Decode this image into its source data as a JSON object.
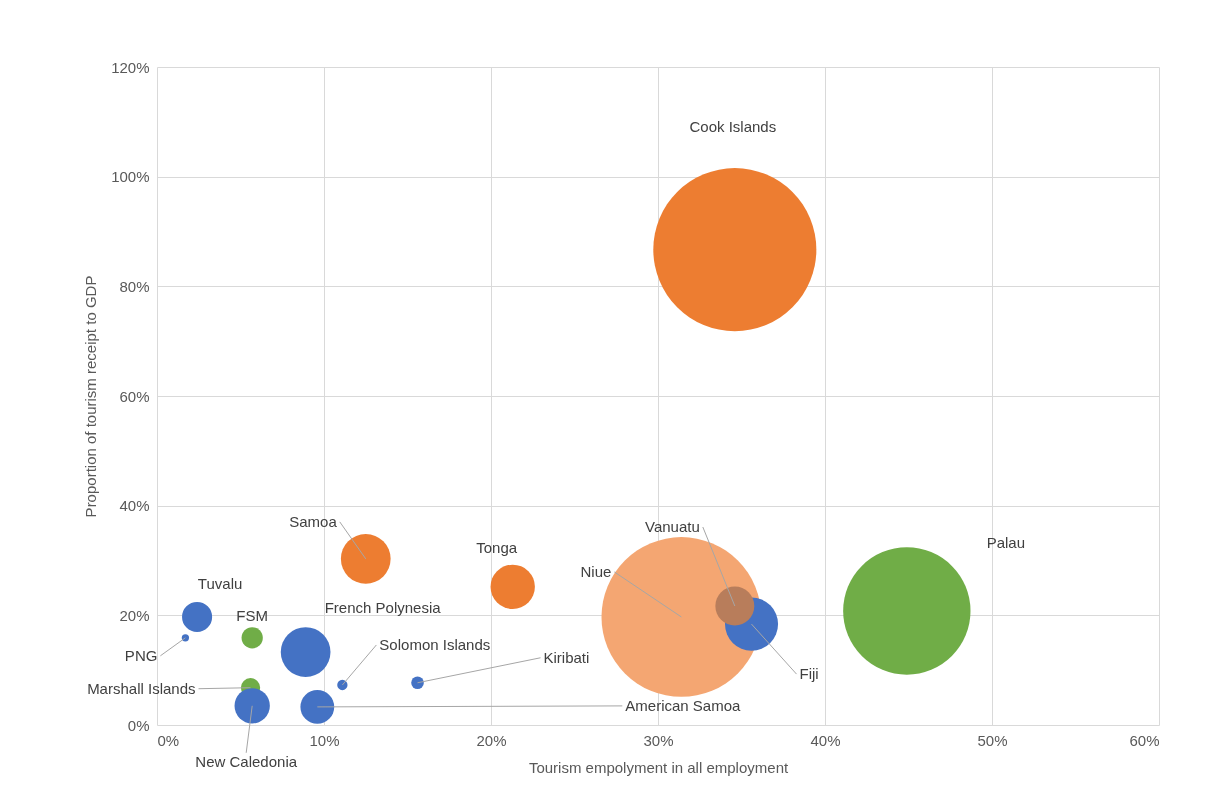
{
  "chart_data": {
    "type": "bubble",
    "xlabel": "Tourism empolyment in all employment",
    "ylabel": "Proportion of tourism receipt to GDP",
    "xlim": [
      0,
      60
    ],
    "xticks": [
      {
        "value": 0,
        "label": "0%"
      },
      {
        "value": 10,
        "label": "10%"
      },
      {
        "value": 20,
        "label": "20%"
      },
      {
        "value": 30,
        "label": "30%"
      },
      {
        "value": 40,
        "label": "40%"
      },
      {
        "value": 50,
        "label": "50%"
      },
      {
        "value": 60,
        "label": "60%"
      }
    ],
    "ylim": [
      0,
      120
    ],
    "yticks": [
      {
        "value": 0,
        "label": "0%"
      },
      {
        "value": 20,
        "label": "20%"
      },
      {
        "value": 40,
        "label": "40%"
      },
      {
        "value": 60,
        "label": "60%"
      },
      {
        "value": 80,
        "label": "80%"
      },
      {
        "value": 100,
        "label": "100%"
      },
      {
        "value": 120,
        "label": "120%"
      }
    ],
    "grid": true,
    "legend": false,
    "series": [
      {
        "name": "Cook Islands",
        "color": "#ed7d31",
        "x": [
          34.6
        ],
        "values": [
          86.7
        ],
        "sizes": [
          1
        ]
      },
      {
        "name": "Palau",
        "color": "#70ad47",
        "x": [
          44.9
        ],
        "values": [
          20.8
        ],
        "sizes": [
          0.61
        ]
      },
      {
        "name": "Niue",
        "color": "#f4a672",
        "x": [
          31.4
        ],
        "values": [
          19.7
        ],
        "sizes": [
          0.96
        ]
      },
      {
        "name": "Fiji",
        "color": "#4472c4",
        "x": [
          35.6
        ],
        "values": [
          18.4
        ],
        "sizes": [
          0.106
        ]
      },
      {
        "name": "Vanuatu",
        "color": "#b87d5b",
        "x": [
          34.6
        ],
        "values": [
          21.7
        ],
        "sizes": [
          0.057
        ]
      },
      {
        "name": "Samoa",
        "color": "#ed7d31",
        "x": [
          12.5
        ],
        "values": [
          30.3
        ],
        "sizes": [
          0.093
        ]
      },
      {
        "name": "Tonga",
        "color": "#ed7d31",
        "x": [
          21.3
        ],
        "values": [
          25.2
        ],
        "sizes": [
          0.074
        ]
      },
      {
        "name": "Tuvalu",
        "color": "#4472c4",
        "x": [
          2.4
        ],
        "values": [
          19.7
        ],
        "sizes": [
          0.034
        ]
      },
      {
        "name": "FSM",
        "color": "#70ad47",
        "x": [
          5.7
        ],
        "values": [
          15.9
        ],
        "sizes": [
          0.017
        ]
      },
      {
        "name": "PNG",
        "color": "#4472c4",
        "x": [
          1.7
        ],
        "values": [
          15.9
        ],
        "sizes": [
          0.002
        ]
      },
      {
        "name": "French Polynesia",
        "color": "#4472c4",
        "x": [
          8.9
        ],
        "values": [
          13.3
        ],
        "sizes": [
          0.093
        ]
      },
      {
        "name": "Solomon Islands",
        "color": "#4472c4",
        "x": [
          11.1
        ],
        "values": [
          7.3
        ],
        "sizes": [
          0.004
        ]
      },
      {
        "name": "Kiribati",
        "color": "#4472c4",
        "x": [
          15.6
        ],
        "values": [
          7.7
        ],
        "sizes": [
          0.006
        ]
      },
      {
        "name": "Marshall Islands",
        "color": "#70ad47",
        "x": [
          5.6
        ],
        "values": [
          6.8
        ],
        "sizes": [
          0.014
        ]
      },
      {
        "name": "New Caledonia",
        "color": "#4472c4",
        "x": [
          5.7
        ],
        "values": [
          3.5
        ],
        "sizes": [
          0.047
        ]
      },
      {
        "name": "American Samoa",
        "color": "#4472c4",
        "x": [
          9.6
        ],
        "values": [
          3.3
        ],
        "sizes": [
          0.043
        ]
      }
    ]
  }
}
